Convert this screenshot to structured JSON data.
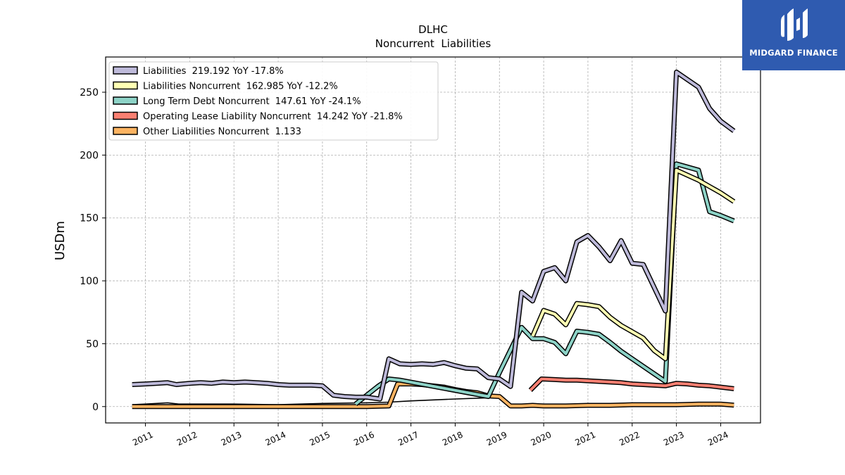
{
  "chart_data": {
    "type": "line",
    "title": "DLHC",
    "subtitle": "Noncurrent  Liabilities",
    "xlabel": "",
    "ylabel": "USDm",
    "xlim": [
      2010.1,
      2024.9
    ],
    "ylim": [
      -13,
      278
    ],
    "x_ticks": [
      {
        "label": "2011",
        "x": 2011.0
      },
      {
        "label": "2012",
        "x": 2012.0
      },
      {
        "label": "2013",
        "x": 2013.0
      },
      {
        "label": "2014",
        "x": 2014.0
      },
      {
        "label": "2015",
        "x": 2015.0
      },
      {
        "label": "2016",
        "x": 2016.0
      },
      {
        "label": "2017",
        "x": 2017.0
      },
      {
        "label": "2018",
        "x": 2018.0
      },
      {
        "label": "2019",
        "x": 2019.0
      },
      {
        "label": "2020",
        "x": 2020.0
      },
      {
        "label": "2021",
        "x": 2021.0
      },
      {
        "label": "2022",
        "x": 2022.0
      },
      {
        "label": "2023",
        "x": 2023.0
      },
      {
        "label": "2024",
        "x": 2024.0
      }
    ],
    "y_ticks": [
      0,
      50,
      100,
      150,
      200,
      250
    ],
    "grid": true,
    "legend_position": "top-left",
    "series": [
      {
        "name": "Liabilities",
        "legend": "Liabilities  219.192 YoY -17.8%",
        "color": "#bebada",
        "points": [
          [
            2010.7,
            17.5
          ],
          [
            2011.0,
            18
          ],
          [
            2011.25,
            18.5
          ],
          [
            2011.5,
            19
          ],
          [
            2011.7,
            17.5
          ],
          [
            2012.0,
            18.5
          ],
          [
            2012.25,
            19
          ],
          [
            2012.5,
            18.5
          ],
          [
            2012.75,
            19.5
          ],
          [
            2013.0,
            19
          ],
          [
            2013.25,
            19.5
          ],
          [
            2013.5,
            19
          ],
          [
            2013.75,
            18.5
          ],
          [
            2014.0,
            17.5
          ],
          [
            2014.25,
            17
          ],
          [
            2014.5,
            17
          ],
          [
            2014.75,
            17
          ],
          [
            2015.0,
            16.5
          ],
          [
            2015.25,
            9
          ],
          [
            2015.5,
            8
          ],
          [
            2015.75,
            7.5
          ],
          [
            2016.0,
            7.5
          ],
          [
            2016.3,
            6
          ],
          [
            2016.5,
            38
          ],
          [
            2016.75,
            34
          ],
          [
            2017.0,
            33.5
          ],
          [
            2017.25,
            34
          ],
          [
            2017.5,
            33.5
          ],
          [
            2017.75,
            35
          ],
          [
            2018.0,
            32.5
          ],
          [
            2018.25,
            30.5
          ],
          [
            2018.5,
            30
          ],
          [
            2018.75,
            23
          ],
          [
            2019.0,
            22
          ],
          [
            2019.25,
            16
          ],
          [
            2019.5,
            91
          ],
          [
            2019.75,
            84
          ],
          [
            2020.0,
            107.5
          ],
          [
            2020.25,
            110.5
          ],
          [
            2020.5,
            100
          ],
          [
            2020.75,
            131
          ],
          [
            2021.0,
            136
          ],
          [
            2021.25,
            127
          ],
          [
            2021.5,
            116
          ],
          [
            2021.75,
            132
          ],
          [
            2022.0,
            114
          ],
          [
            2022.25,
            113
          ],
          [
            2022.75,
            76
          ],
          [
            2023.0,
            266
          ],
          [
            2023.5,
            254
          ],
          [
            2023.75,
            237
          ],
          [
            2024.0,
            227
          ],
          [
            2024.3,
            219.2
          ]
        ]
      },
      {
        "name": "Liabilities Noncurrent",
        "legend": "Liabilities Noncurrent  162.985 YoY -12.2%",
        "color": "#ffffb3",
        "points": [
          [
            2019.75,
            56
          ],
          [
            2020.0,
            76.5
          ],
          [
            2020.25,
            73.5
          ],
          [
            2020.5,
            65
          ],
          [
            2020.75,
            82
          ],
          [
            2021.0,
            81
          ],
          [
            2021.25,
            79.5
          ],
          [
            2021.5,
            71
          ],
          [
            2021.75,
            64.5
          ],
          [
            2022.0,
            59.5
          ],
          [
            2022.25,
            54.5
          ],
          [
            2022.5,
            44.5
          ],
          [
            2022.75,
            38
          ],
          [
            2023.0,
            188
          ],
          [
            2023.5,
            180
          ],
          [
            2023.75,
            175
          ],
          [
            2024.0,
            170
          ],
          [
            2024.3,
            163
          ]
        ]
      },
      {
        "name": "Long Term Debt Noncurrent",
        "legend": "Long Term Debt Noncurrent  147.61 YoY -24.1%",
        "color": "#8dd3c7",
        "points": [
          [
            2015.75,
            2
          ],
          [
            2016.0,
            9
          ],
          [
            2016.25,
            16
          ],
          [
            2016.5,
            22
          ],
          [
            2016.75,
            21
          ],
          [
            2018.75,
            8
          ],
          [
            2019.0,
            27
          ],
          [
            2019.5,
            63
          ],
          [
            2019.75,
            54
          ],
          [
            2020.0,
            54
          ],
          [
            2020.25,
            51
          ],
          [
            2020.5,
            42
          ],
          [
            2020.75,
            60
          ],
          [
            2021.0,
            59
          ],
          [
            2021.25,
            57.5
          ],
          [
            2021.5,
            51
          ],
          [
            2021.75,
            44
          ],
          [
            2022.0,
            38
          ],
          [
            2022.25,
            32
          ],
          [
            2022.5,
            26
          ],
          [
            2022.75,
            20
          ],
          [
            2023.0,
            193
          ],
          [
            2023.5,
            188
          ],
          [
            2023.75,
            155
          ],
          [
            2024.0,
            152
          ],
          [
            2024.3,
            147.6
          ]
        ]
      },
      {
        "name": "Operating Lease Liability Noncurrent",
        "legend": "Operating Lease Liability Noncurrent  14.242 YoY -21.8%",
        "color": "#fb8072",
        "points": [
          [
            2019.7,
            13
          ],
          [
            2019.95,
            22
          ],
          [
            2020.25,
            21.5
          ],
          [
            2020.5,
            21
          ],
          [
            2020.75,
            21
          ],
          [
            2021.0,
            20.5
          ],
          [
            2021.25,
            20
          ],
          [
            2021.5,
            19.5
          ],
          [
            2021.75,
            19
          ],
          [
            2022.0,
            18
          ],
          [
            2022.25,
            17.5
          ],
          [
            2022.5,
            17
          ],
          [
            2022.75,
            16.5
          ],
          [
            2023.0,
            18.5
          ],
          [
            2023.25,
            18
          ],
          [
            2023.5,
            17
          ],
          [
            2023.75,
            16.5
          ],
          [
            2024.0,
            15.5
          ],
          [
            2024.3,
            14.2
          ]
        ]
      },
      {
        "name": "Other Liabilities Noncurrent",
        "legend": "Other Liabilities Noncurrent  1.133",
        "color": "#fdb462",
        "points": [
          [
            2010.7,
            0
          ],
          [
            2011.0,
            0
          ],
          [
            2012.0,
            0
          ],
          [
            2013.0,
            0
          ],
          [
            2014.0,
            0
          ],
          [
            2015.0,
            0
          ],
          [
            2016.0,
            0
          ],
          [
            2016.5,
            0.5
          ],
          [
            2016.7,
            18
          ],
          [
            2017.0,
            18
          ],
          [
            2017.25,
            17.5
          ],
          [
            2017.5,
            16.5
          ],
          [
            2017.75,
            15.5
          ],
          [
            2018.0,
            13.5
          ],
          [
            2018.25,
            12
          ],
          [
            2018.5,
            11
          ],
          [
            2018.75,
            8.5
          ],
          [
            2019.0,
            8
          ],
          [
            2019.25,
            0.5
          ],
          [
            2019.5,
            0.5
          ],
          [
            2019.75,
            1
          ],
          [
            2020.0,
            0.5
          ],
          [
            2020.5,
            0.5
          ],
          [
            2021.0,
            1
          ],
          [
            2021.5,
            1
          ],
          [
            2022.0,
            1.5
          ],
          [
            2022.5,
            1.5
          ],
          [
            2023.0,
            1.5
          ],
          [
            2023.5,
            2
          ],
          [
            2024.0,
            2
          ],
          [
            2024.3,
            1.1
          ]
        ]
      }
    ],
    "auxiliary_lines": [
      {
        "color": "#000000",
        "points": [
          [
            2010.7,
            1.5
          ],
          [
            2011.0,
            2
          ],
          [
            2011.5,
            3
          ],
          [
            2011.75,
            2
          ],
          [
            2012.0,
            2
          ],
          [
            2013.0,
            2
          ],
          [
            2014.0,
            1.5
          ],
          [
            2015.0,
            2.5
          ],
          [
            2016.0,
            3
          ],
          [
            2016.5,
            3.5
          ],
          [
            2017.0,
            4.5
          ],
          [
            2018.0,
            6
          ],
          [
            2018.75,
            7
          ],
          [
            2019.0,
            7.5
          ]
        ]
      }
    ]
  },
  "logo": {
    "text": "MIDGARD FINANCE",
    "background": "#2f5bb0"
  }
}
